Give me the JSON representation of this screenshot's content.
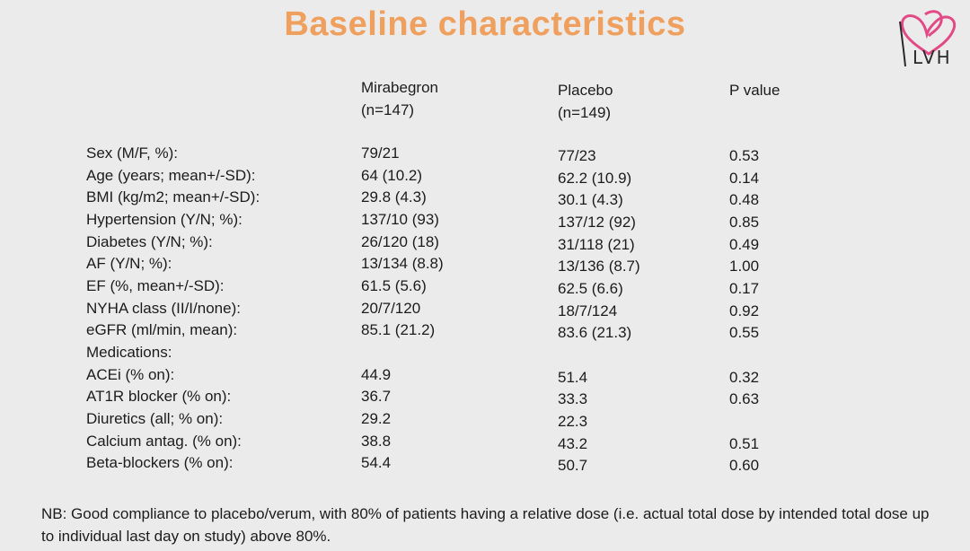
{
  "title": "Baseline characteristics",
  "logo": {
    "text": "LVH",
    "icon": "heart-logo-icon",
    "colors": {
      "pink": "#e24a86",
      "dark": "#2a2a2a"
    }
  },
  "header": {
    "mirabegron": "Mirabegron",
    "mirabegron_n": "(n=147)",
    "placebo": "Placebo",
    "placebo_n": "(n=149)",
    "pvalue": "P value"
  },
  "rows": [
    {
      "label": "Sex (M/F, %):",
      "mirabegron": "79/21",
      "placebo": "77/23",
      "p": "0.53"
    },
    {
      "label": "Age (years; mean+/-SD):",
      "mirabegron": "64 (10.2)",
      "placebo": "62.2 (10.9)",
      "p": "0.14"
    },
    {
      "label": "BMI (kg/m2; mean+/-SD):",
      "mirabegron": "29.8 (4.3)",
      "placebo": "30.1 (4.3)",
      "p": "0.48"
    },
    {
      "label": "Hypertension (Y/N; %):",
      "mirabegron": "137/10 (93)",
      "placebo": "137/12 (92)",
      "p": "0.85"
    },
    {
      "label": "Diabetes (Y/N; %):",
      "mirabegron": "26/120 (18)",
      "placebo": "31/118 (21)",
      "p": "0.49"
    },
    {
      "label": "AF (Y/N; %):",
      "mirabegron": "13/134 (8.8)",
      "placebo": "13/136 (8.7)",
      "p": "1.00"
    },
    {
      "label": "EF (%, mean+/-SD):",
      "mirabegron": "61.5 (5.6)",
      "placebo": "62.5 (6.6)",
      "p": "0.17"
    },
    {
      "label": "NYHA class (II/I/none):",
      "mirabegron": "20/7/120",
      "placebo": "18/7/124",
      "p": "0.92"
    },
    {
      "label": "eGFR (ml/min, mean):",
      "mirabegron": "85.1 (21.2)",
      "placebo": "83.6 (21.3)",
      "p": "0.55"
    },
    {
      "label": "Medications:",
      "mirabegron": "",
      "placebo": "",
      "p": ""
    },
    {
      "label": "ACEi (% on):",
      "mirabegron": "44.9",
      "placebo": "51.4",
      "p": "0.32"
    },
    {
      "label": "AT1R blocker (% on):",
      "mirabegron": "36.7",
      "placebo": "33.3",
      "p": "0.63"
    },
    {
      "label": "Diuretics (all; % on):",
      "mirabegron": "29.2",
      "placebo": "22.3",
      "p": ""
    },
    {
      "label": "Calcium antag. (% on):",
      "mirabegron": "38.8",
      "placebo": "43.2",
      "p": "0.51"
    },
    {
      "label": "Beta-blockers (% on):",
      "mirabegron": "54.4",
      "placebo": "50.7",
      "p": "0.60"
    }
  ],
  "note": "NB: Good compliance to placebo/verum, with 80% of patients having a relative dose (i.e. actual total dose by intended total dose up to individual last day on study) above 80%."
}
